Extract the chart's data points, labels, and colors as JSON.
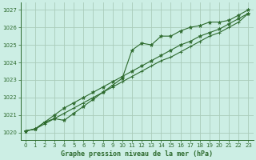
{
  "title": "Graphe pression niveau de la mer (hPa)",
  "bg_color": "#cceee4",
  "grid_color": "#aaccbb",
  "line_color": "#2d6a2d",
  "xlim": [
    -0.5,
    23.5
  ],
  "ylim": [
    1019.6,
    1027.4
  ],
  "yticks": [
    1020,
    1021,
    1022,
    1023,
    1024,
    1025,
    1026,
    1027
  ],
  "xticks": [
    0,
    1,
    2,
    3,
    4,
    5,
    6,
    7,
    8,
    9,
    10,
    11,
    12,
    13,
    14,
    15,
    16,
    17,
    18,
    19,
    20,
    21,
    22,
    23
  ],
  "series1_x": [
    0,
    1,
    2,
    3,
    4,
    5,
    6,
    7,
    8,
    9,
    10,
    11,
    12,
    13,
    14,
    15,
    16,
    17,
    18,
    19,
    20,
    21,
    22,
    23
  ],
  "series1_y": [
    1020.1,
    1020.2,
    1020.6,
    1020.8,
    1020.7,
    1021.1,
    1021.5,
    1021.9,
    1022.3,
    1022.7,
    1023.1,
    1024.7,
    1025.1,
    1025.0,
    1025.5,
    1025.5,
    1025.8,
    1026.0,
    1026.1,
    1026.3,
    1026.3,
    1026.4,
    1026.7,
    1027.0
  ],
  "series2_x": [
    0,
    1,
    2,
    3,
    4,
    5,
    6,
    7,
    8,
    9,
    10,
    11,
    12,
    13,
    14,
    15,
    16,
    17,
    18,
    19,
    20,
    21,
    22,
    23
  ],
  "series2_y": [
    1020.1,
    1020.2,
    1020.6,
    1021.0,
    1021.4,
    1021.7,
    1022.0,
    1022.3,
    1022.6,
    1022.9,
    1023.2,
    1023.5,
    1023.8,
    1024.1,
    1024.4,
    1024.7,
    1025.0,
    1025.2,
    1025.5,
    1025.7,
    1025.9,
    1026.2,
    1026.5,
    1026.8
  ],
  "series3_x": [
    0,
    1,
    2,
    3,
    4,
    5,
    6,
    7,
    8,
    9,
    10,
    11,
    12,
    13,
    14,
    15,
    16,
    17,
    18,
    19,
    20,
    21,
    22,
    23
  ],
  "series3_y": [
    1020.1,
    1020.2,
    1020.5,
    1020.8,
    1021.1,
    1021.4,
    1021.7,
    1022.0,
    1022.3,
    1022.6,
    1022.9,
    1023.2,
    1023.5,
    1023.8,
    1024.1,
    1024.3,
    1024.6,
    1024.9,
    1025.2,
    1025.5,
    1025.7,
    1026.0,
    1026.3,
    1026.8
  ],
  "line_width": 0.8,
  "marker_size": 3.0,
  "tick_fontsize": 5.0,
  "xlabel_fontsize": 6.0
}
